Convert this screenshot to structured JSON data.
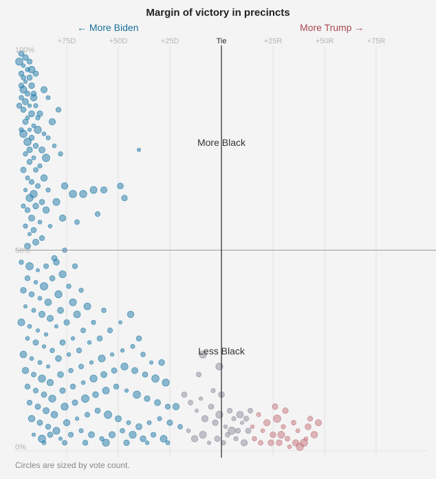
{
  "title": "Margin of victory in precincts",
  "direction_labels": {
    "left": "← More Biden",
    "right": "More Trump →"
  },
  "footnote": "Circles are sized by vote count.",
  "colors": {
    "biden": "#1f7aa8",
    "neutral": "#8c8c9c",
    "trump": "#c4737b",
    "grid": "#e2e2e2",
    "axis": "#222222"
  },
  "chart_data": {
    "type": "scatter",
    "xlabel": "",
    "ylabel": "",
    "xlim": [
      -100,
      100
    ],
    "ylim": [
      0,
      100
    ],
    "x_ticks": [
      {
        "value": -75,
        "label": "+75D"
      },
      {
        "value": -50,
        "label": "+50D"
      },
      {
        "value": -25,
        "label": "+25D"
      },
      {
        "value": 0,
        "label": "Tie"
      },
      {
        "value": 25,
        "label": "+25R"
      },
      {
        "value": 50,
        "label": "+50R"
      },
      {
        "value": 75,
        "label": "+75R"
      }
    ],
    "y_ticks": [
      {
        "value": 100,
        "label": "100%"
      },
      {
        "value": 50,
        "label": "50%"
      },
      {
        "value": 0,
        "label": "0%"
      }
    ],
    "annotations": [
      {
        "text": "More Black",
        "x": 0,
        "y": 76
      },
      {
        "text": "Less Black",
        "x": 0,
        "y": 24
      }
    ],
    "series": [
      {
        "points": [
          [
            -97,
            99
          ],
          [
            -95,
            98
          ],
          [
            -96,
            96
          ],
          [
            -94,
            95
          ],
          [
            -97,
            94
          ],
          [
            -93,
            93
          ],
          [
            -95,
            92
          ],
          [
            -96,
            90
          ],
          [
            -92,
            91
          ],
          [
            -94,
            89
          ],
          [
            -97,
            88
          ],
          [
            -91,
            88
          ],
          [
            -95,
            87
          ],
          [
            -93,
            86
          ],
          [
            -96,
            85
          ],
          [
            -90,
            86
          ],
          [
            -92,
            84
          ],
          [
            -94,
            83
          ],
          [
            -88,
            84
          ],
          [
            -95,
            82
          ],
          [
            -91,
            81
          ],
          [
            -93,
            80
          ],
          [
            -89,
            80
          ],
          [
            -96,
            79
          ],
          [
            -86,
            79
          ],
          [
            -92,
            78
          ],
          [
            -94,
            77
          ],
          [
            -84,
            78
          ],
          [
            -90,
            76
          ],
          [
            -93,
            75
          ],
          [
            -87,
            75
          ],
          [
            -95,
            74
          ],
          [
            -91,
            73
          ],
          [
            -85,
            73
          ],
          [
            -93,
            72
          ],
          [
            -88,
            71
          ],
          [
            -96,
            70
          ],
          [
            -90,
            70
          ],
          [
            -94,
            68
          ],
          [
            -86,
            68
          ],
          [
            -92,
            67
          ],
          [
            -89,
            66
          ],
          [
            -95,
            65
          ],
          [
            -91,
            64
          ],
          [
            -84,
            65
          ],
          [
            -93,
            63
          ],
          [
            -87,
            62
          ],
          [
            -96,
            61
          ],
          [
            -90,
            61
          ],
          [
            -94,
            60
          ],
          [
            -85,
            60
          ],
          [
            -92,
            58
          ],
          [
            -88,
            57
          ],
          [
            -95,
            56
          ],
          [
            -91,
            55
          ],
          [
            -83,
            56
          ],
          [
            -93,
            54
          ],
          [
            -87,
            53
          ],
          [
            -90,
            52
          ],
          [
            -94,
            51
          ],
          [
            -98,
            97
          ],
          [
            -96,
            93
          ],
          [
            -93,
            97
          ],
          [
            -90,
            94
          ],
          [
            -97,
            91
          ],
          [
            -92,
            95
          ],
          [
            -91,
            89
          ],
          [
            -98,
            86
          ],
          [
            -89,
            83
          ],
          [
            -97,
            80
          ],
          [
            -82,
            82
          ],
          [
            -81,
            76
          ],
          [
            -78,
            74
          ],
          [
            -76,
            66
          ],
          [
            -80,
            62
          ],
          [
            -72,
            64
          ],
          [
            -67,
            64
          ],
          [
            -62,
            65
          ],
          [
            -57,
            65
          ],
          [
            -49,
            66
          ],
          [
            -47,
            63
          ],
          [
            -40,
            75
          ],
          [
            -70,
            57
          ],
          [
            -60,
            59
          ],
          [
            -84,
            88
          ],
          [
            -79,
            85
          ],
          [
            -86,
            90
          ],
          [
            -77,
            58
          ],
          [
            -97,
            47
          ],
          [
            -93,
            46
          ],
          [
            -89,
            45
          ],
          [
            -85,
            46
          ],
          [
            -80,
            47
          ],
          [
            -94,
            43
          ],
          [
            -90,
            42
          ],
          [
            -86,
            41
          ],
          [
            -82,
            43
          ],
          [
            -77,
            44
          ],
          [
            -96,
            40
          ],
          [
            -92,
            39
          ],
          [
            -88,
            38
          ],
          [
            -84,
            37
          ],
          [
            -79,
            39
          ],
          [
            -74,
            41
          ],
          [
            -95,
            36
          ],
          [
            -91,
            35
          ],
          [
            -87,
            34
          ],
          [
            -83,
            33
          ],
          [
            -78,
            35
          ],
          [
            -72,
            37
          ],
          [
            -68,
            40
          ],
          [
            -97,
            32
          ],
          [
            -93,
            31
          ],
          [
            -89,
            30
          ],
          [
            -85,
            29
          ],
          [
            -80,
            31
          ],
          [
            -75,
            32
          ],
          [
            -70,
            34
          ],
          [
            -65,
            36
          ],
          [
            -94,
            28
          ],
          [
            -90,
            27
          ],
          [
            -86,
            26
          ],
          [
            -82,
            25
          ],
          [
            -77,
            27
          ],
          [
            -72,
            28
          ],
          [
            -67,
            30
          ],
          [
            -62,
            32
          ],
          [
            -57,
            35
          ],
          [
            -96,
            24
          ],
          [
            -92,
            23
          ],
          [
            -88,
            22
          ],
          [
            -84,
            21
          ],
          [
            -79,
            23
          ],
          [
            -74,
            24
          ],
          [
            -69,
            25
          ],
          [
            -64,
            27
          ],
          [
            -59,
            28
          ],
          [
            -54,
            30
          ],
          [
            -49,
            32
          ],
          [
            -44,
            34
          ],
          [
            -40,
            28
          ],
          [
            -95,
            20
          ],
          [
            -91,
            19
          ],
          [
            -87,
            18
          ],
          [
            -83,
            17
          ],
          [
            -78,
            19
          ],
          [
            -73,
            20
          ],
          [
            -68,
            21
          ],
          [
            -63,
            22
          ],
          [
            -58,
            23
          ],
          [
            -53,
            24
          ],
          [
            -48,
            25
          ],
          [
            -43,
            26
          ],
          [
            -38,
            24
          ],
          [
            -34,
            22
          ],
          [
            -29,
            22
          ],
          [
            -94,
            16
          ],
          [
            -90,
            15
          ],
          [
            -86,
            14
          ],
          [
            -82,
            13
          ],
          [
            -77,
            15
          ],
          [
            -72,
            16
          ],
          [
            -67,
            17
          ],
          [
            -62,
            18
          ],
          [
            -57,
            19
          ],
          [
            -52,
            20
          ],
          [
            -47,
            21
          ],
          [
            -42,
            20
          ],
          [
            -37,
            19
          ],
          [
            -32,
            18
          ],
          [
            -27,
            17
          ],
          [
            -93,
            12
          ],
          [
            -89,
            11
          ],
          [
            -85,
            10
          ],
          [
            -81,
            9
          ],
          [
            -76,
            11
          ],
          [
            -71,
            12
          ],
          [
            -66,
            13
          ],
          [
            -61,
            14
          ],
          [
            -56,
            15
          ],
          [
            -51,
            16
          ],
          [
            -46,
            15
          ],
          [
            -41,
            14
          ],
          [
            -36,
            13
          ],
          [
            -31,
            12
          ],
          [
            -26,
            11
          ],
          [
            -22,
            11
          ],
          [
            -92,
            8
          ],
          [
            -88,
            7
          ],
          [
            -84,
            6
          ],
          [
            -80,
            5
          ],
          [
            -75,
            7
          ],
          [
            -70,
            8
          ],
          [
            -65,
            9
          ],
          [
            -60,
            10
          ],
          [
            -55,
            9
          ],
          [
            -50,
            8
          ],
          [
            -45,
            7
          ],
          [
            -40,
            6
          ],
          [
            -35,
            7
          ],
          [
            -30,
            8
          ],
          [
            -25,
            7
          ],
          [
            -20,
            6
          ],
          [
            -91,
            4
          ],
          [
            -87,
            3
          ],
          [
            -83,
            4
          ],
          [
            -78,
            3
          ],
          [
            -73,
            4
          ],
          [
            -68,
            5
          ],
          [
            -63,
            4
          ],
          [
            -58,
            3
          ],
          [
            -53,
            4
          ],
          [
            -48,
            5
          ],
          [
            -43,
            4
          ],
          [
            -38,
            3
          ],
          [
            -33,
            4
          ],
          [
            -28,
            3
          ],
          [
            -86,
            2
          ],
          [
            -76,
            2
          ],
          [
            -66,
            2
          ],
          [
            -56,
            2
          ],
          [
            -46,
            2
          ],
          [
            -36,
            2
          ],
          [
            -26,
            2
          ],
          [
            -81,
            48
          ],
          [
            -76,
            50
          ],
          [
            -71,
            46
          ]
        ]
      },
      {
        "points": [
          [
            -18,
            14
          ],
          [
            -15,
            12
          ],
          [
            -12,
            10
          ],
          [
            -10,
            13
          ],
          [
            -8,
            8
          ],
          [
            -5,
            11
          ],
          [
            -3,
            7
          ],
          [
            -1,
            9
          ],
          [
            2,
            6
          ],
          [
            4,
            10
          ],
          [
            6,
            8
          ],
          [
            8,
            5
          ],
          [
            10,
            7
          ],
          [
            -16,
            5
          ],
          [
            -13,
            3
          ],
          [
            -9,
            4
          ],
          [
            -6,
            2
          ],
          [
            -2,
            3
          ],
          [
            1,
            2
          ],
          [
            3,
            4
          ],
          [
            7,
            3
          ],
          [
            11,
            2
          ],
          [
            13,
            5
          ],
          [
            -4,
            15
          ],
          [
            0,
            14
          ],
          [
            -1,
            21
          ],
          [
            -9,
            24
          ],
          [
            -11,
            19
          ],
          [
            5,
            5
          ],
          [
            9,
            9
          ]
        ]
      },
      {
        "points": [
          [
            12,
            8
          ],
          [
            15,
            6
          ],
          [
            18,
            9
          ],
          [
            20,
            5
          ],
          [
            22,
            7
          ],
          [
            25,
            4
          ],
          [
            27,
            8
          ],
          [
            30,
            6
          ],
          [
            32,
            3
          ],
          [
            35,
            7
          ],
          [
            37,
            5
          ],
          [
            40,
            2
          ],
          [
            42,
            6
          ],
          [
            45,
            4
          ],
          [
            47,
            7
          ],
          [
            16,
            3
          ],
          [
            24,
            2
          ],
          [
            33,
            1
          ],
          [
            36,
            2
          ],
          [
            38,
            1
          ],
          [
            28,
            2
          ],
          [
            19,
            2
          ],
          [
            14,
            10
          ],
          [
            26,
            11
          ],
          [
            31,
            10
          ],
          [
            41,
            3
          ],
          [
            43,
            8
          ],
          [
            29,
            4
          ]
        ]
      }
    ]
  }
}
